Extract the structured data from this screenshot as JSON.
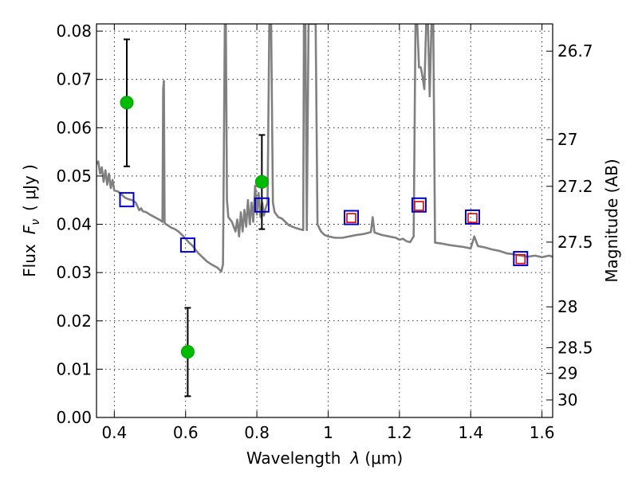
{
  "chart_data": {
    "type": "scatter",
    "xlabel_prefix": "Wavelength",
    "xlabel_math": "λ",
    "xlabel_unit": "(μm)",
    "ylabel_prefix": "Flux",
    "ylabel_math": "F",
    "ylabel_math_sub": "ν",
    "ylabel_unit": "( μJy )",
    "y2label": "Magnitude (AB)",
    "xlim": [
      0.35,
      1.63
    ],
    "ylim": [
      0.0,
      0.0815
    ],
    "grid": true,
    "x_ticks": [
      {
        "value": 0.4,
        "label": "0.4"
      },
      {
        "value": 0.6,
        "label": "0.6"
      },
      {
        "value": 0.8,
        "label": "0.8"
      },
      {
        "value": 1.0,
        "label": "1"
      },
      {
        "value": 1.2,
        "label": "1.2"
      },
      {
        "value": 1.4,
        "label": "1.4"
      },
      {
        "value": 1.6,
        "label": "1.6"
      }
    ],
    "y_ticks": [
      {
        "value": 0.0,
        "label": "0.00"
      },
      {
        "value": 0.01,
        "label": "0.01"
      },
      {
        "value": 0.02,
        "label": "0.02"
      },
      {
        "value": 0.03,
        "label": "0.03"
      },
      {
        "value": 0.04,
        "label": "0.04"
      },
      {
        "value": 0.05,
        "label": "0.05"
      },
      {
        "value": 0.06,
        "label": "0.06"
      },
      {
        "value": 0.07,
        "label": "0.07"
      },
      {
        "value": 0.08,
        "label": "0.08"
      }
    ],
    "magnitude_ticks": [
      {
        "mag": 26.7,
        "label": "26.7"
      },
      {
        "mag": 27.0,
        "label": "27"
      },
      {
        "mag": 27.2,
        "label": "27.2"
      },
      {
        "mag": 27.5,
        "label": "27.5"
      },
      {
        "mag": 28.0,
        "label": "28"
      },
      {
        "mag": 28.5,
        "label": "28.5"
      },
      {
        "mag": 29.0,
        "label": "29"
      },
      {
        "mag": 30.0,
        "label": "30"
      }
    ],
    "observed_points": {
      "color": "#00bb00",
      "points": [
        {
          "x": 0.435,
          "y": 0.0652,
          "ylow": 0.052,
          "yhigh": 0.0783
        },
        {
          "x": 0.606,
          "y": 0.0136,
          "ylow": 0.0044,
          "yhigh": 0.0227
        },
        {
          "x": 0.814,
          "y": 0.0488,
          "ylow": 0.039,
          "yhigh": 0.0585
        }
      ]
    },
    "model_blue_squares": {
      "color": "#0000cc",
      "points": [
        {
          "x": 0.435,
          "y": 0.0451
        },
        {
          "x": 0.606,
          "y": 0.0357
        },
        {
          "x": 0.814,
          "y": 0.044
        },
        {
          "x": 1.065,
          "y": 0.0414
        },
        {
          "x": 1.255,
          "y": 0.044
        },
        {
          "x": 1.405,
          "y": 0.0415
        },
        {
          "x": 1.54,
          "y": 0.0329
        }
      ]
    },
    "model_red_squares": {
      "color": "#dd0000",
      "points": [
        {
          "x": 1.065,
          "y": 0.0413
        },
        {
          "x": 1.255,
          "y": 0.0438
        },
        {
          "x": 1.405,
          "y": 0.0413
        },
        {
          "x": 1.54,
          "y": 0.0328
        }
      ]
    },
    "sed_spectrum": {
      "color": "#808080",
      "points": [
        [
          0.35,
          0.0525
        ],
        [
          0.355,
          0.053
        ],
        [
          0.36,
          0.0505
        ],
        [
          0.365,
          0.0518
        ],
        [
          0.37,
          0.0488
        ],
        [
          0.375,
          0.0512
        ],
        [
          0.38,
          0.0482
        ],
        [
          0.385,
          0.0505
        ],
        [
          0.39,
          0.0475
        ],
        [
          0.395,
          0.0492
        ],
        [
          0.4,
          0.047
        ],
        [
          0.41,
          0.0468
        ],
        [
          0.42,
          0.0462
        ],
        [
          0.43,
          0.0455
        ],
        [
          0.44,
          0.0452
        ],
        [
          0.45,
          0.045
        ],
        [
          0.46,
          0.0445
        ],
        [
          0.465,
          0.0437
        ],
        [
          0.47,
          0.0429
        ],
        [
          0.475,
          0.0433
        ],
        [
          0.48,
          0.0427
        ],
        [
          0.49,
          0.0425
        ],
        [
          0.5,
          0.042
        ],
        [
          0.51,
          0.0416
        ],
        [
          0.52,
          0.0412
        ],
        [
          0.53,
          0.0408
        ],
        [
          0.535,
          0.0405
        ],
        [
          0.537,
          0.068
        ],
        [
          0.539,
          0.0697
        ],
        [
          0.541,
          0.0403
        ],
        [
          0.545,
          0.04
        ],
        [
          0.55,
          0.0398
        ],
        [
          0.56,
          0.0393
        ],
        [
          0.57,
          0.039
        ],
        [
          0.58,
          0.0385
        ],
        [
          0.59,
          0.0378
        ],
        [
          0.6,
          0.037
        ],
        [
          0.61,
          0.0362
        ],
        [
          0.62,
          0.0355
        ],
        [
          0.63,
          0.0345
        ],
        [
          0.64,
          0.0337
        ],
        [
          0.65,
          0.033
        ],
        [
          0.66,
          0.0323
        ],
        [
          0.67,
          0.0318
        ],
        [
          0.68,
          0.0314
        ],
        [
          0.69,
          0.031
        ],
        [
          0.7,
          0.0302
        ],
        [
          0.705,
          0.0317
        ],
        [
          0.707,
          0.05
        ],
        [
          0.71,
          0.0815
        ],
        [
          0.713,
          0.0815
        ],
        [
          0.716,
          0.045
        ],
        [
          0.72,
          0.0415
        ],
        [
          0.73,
          0.0405
        ],
        [
          0.74,
          0.0385
        ],
        [
          0.745,
          0.041
        ],
        [
          0.75,
          0.0375
        ],
        [
          0.755,
          0.0425
        ],
        [
          0.76,
          0.0385
        ],
        [
          0.765,
          0.043
        ],
        [
          0.77,
          0.0395
        ],
        [
          0.775,
          0.045
        ],
        [
          0.78,
          0.04
        ],
        [
          0.785,
          0.0445
        ],
        [
          0.79,
          0.0405
        ],
        [
          0.795,
          0.048
        ],
        [
          0.8,
          0.042
        ],
        [
          0.805,
          0.0465
        ],
        [
          0.81,
          0.0415
        ],
        [
          0.815,
          0.0445
        ],
        [
          0.82,
          0.0418
        ],
        [
          0.825,
          0.0435
        ],
        [
          0.83,
          0.0445
        ],
        [
          0.835,
          0.0815
        ],
        [
          0.84,
          0.0815
        ],
        [
          0.845,
          0.0445
        ],
        [
          0.85,
          0.0425
        ],
        [
          0.86,
          0.0415
        ],
        [
          0.87,
          0.0412
        ],
        [
          0.88,
          0.0405
        ],
        [
          0.89,
          0.0398
        ],
        [
          0.9,
          0.0395
        ],
        [
          0.91,
          0.0392
        ],
        [
          0.92,
          0.039
        ],
        [
          0.93,
          0.0388
        ],
        [
          0.932,
          0.0815
        ],
        [
          0.936,
          0.0815
        ],
        [
          0.94,
          0.0388
        ],
        [
          0.945,
          0.0815
        ],
        [
          0.95,
          0.0815
        ],
        [
          0.955,
          0.0815
        ],
        [
          0.96,
          0.0815
        ],
        [
          0.965,
          0.0815
        ],
        [
          0.97,
          0.04
        ],
        [
          0.98,
          0.0385
        ],
        [
          0.99,
          0.0378
        ],
        [
          1.0,
          0.0375
        ],
        [
          1.02,
          0.0372
        ],
        [
          1.04,
          0.0372
        ],
        [
          1.06,
          0.0375
        ],
        [
          1.08,
          0.0378
        ],
        [
          1.1,
          0.038
        ],
        [
          1.12,
          0.0384
        ],
        [
          1.125,
          0.0415
        ],
        [
          1.13,
          0.0383
        ],
        [
          1.15,
          0.0378
        ],
        [
          1.17,
          0.0375
        ],
        [
          1.19,
          0.0372
        ],
        [
          1.2,
          0.0368
        ],
        [
          1.21,
          0.037
        ],
        [
          1.22,
          0.0365
        ],
        [
          1.23,
          0.0363
        ],
        [
          1.24,
          0.0375
        ],
        [
          1.245,
          0.0815
        ],
        [
          1.25,
          0.0815
        ],
        [
          1.255,
          0.0725
        ],
        [
          1.26,
          0.0725
        ],
        [
          1.265,
          0.0705
        ],
        [
          1.27,
          0.068
        ],
        [
          1.275,
          0.0815
        ],
        [
          1.28,
          0.0815
        ],
        [
          1.285,
          0.0665
        ],
        [
          1.29,
          0.0815
        ],
        [
          1.295,
          0.0815
        ],
        [
          1.3,
          0.0362
        ],
        [
          1.32,
          0.036
        ],
        [
          1.34,
          0.0357
        ],
        [
          1.36,
          0.0355
        ],
        [
          1.38,
          0.0353
        ],
        [
          1.4,
          0.035
        ],
        [
          1.41,
          0.0375
        ],
        [
          1.42,
          0.0355
        ],
        [
          1.44,
          0.0352
        ],
        [
          1.46,
          0.0348
        ],
        [
          1.48,
          0.0345
        ],
        [
          1.5,
          0.034
        ],
        [
          1.52,
          0.0338
        ],
        [
          1.54,
          0.0335
        ],
        [
          1.56,
          0.0333
        ],
        [
          1.58,
          0.0335
        ],
        [
          1.6,
          0.0332
        ],
        [
          1.62,
          0.0335
        ],
        [
          1.63,
          0.0333
        ]
      ]
    }
  }
}
